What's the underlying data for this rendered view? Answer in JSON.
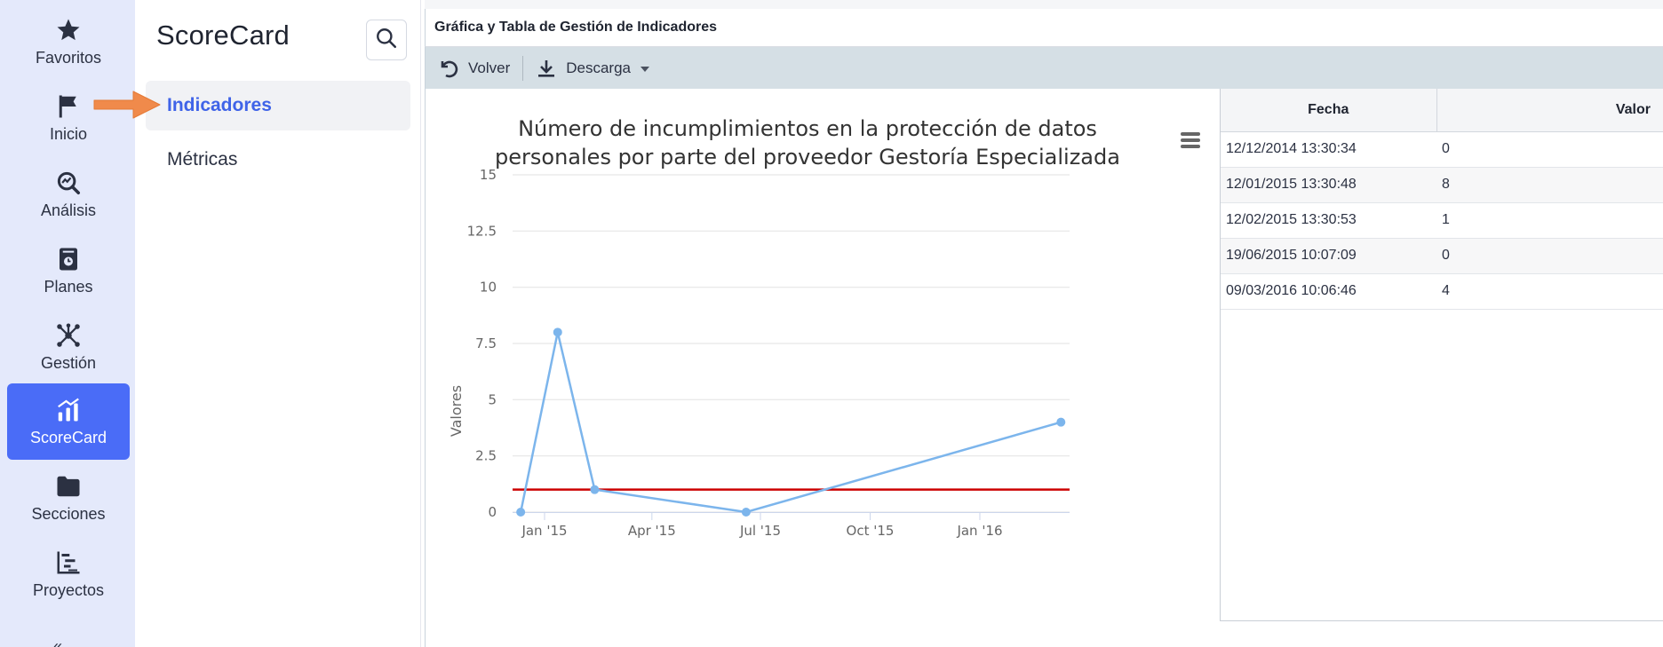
{
  "rail": {
    "items": [
      {
        "label": "Favoritos",
        "icon": "star-icon"
      },
      {
        "label": "Inicio",
        "icon": "flag-icon"
      },
      {
        "label": "Análisis",
        "icon": "analysis-magnifier-icon"
      },
      {
        "label": "Planes",
        "icon": "plans-book-icon"
      },
      {
        "label": "Gestión",
        "icon": "network-nodes-icon"
      },
      {
        "label": "ScoreCard",
        "icon": "bar-chart-icon"
      },
      {
        "label": "Secciones",
        "icon": "folder-icon"
      },
      {
        "label": "Proyectos",
        "icon": "gantt-icon"
      }
    ],
    "active": "ScoreCard",
    "more_label": "«"
  },
  "side": {
    "title": "ScoreCard",
    "items": [
      {
        "label": "Indicadores",
        "active": true
      },
      {
        "label": "Métricas",
        "active": false
      }
    ]
  },
  "panel": {
    "title": "Gráfica y Tabla de Gestión de Indicadores"
  },
  "toolbar": {
    "back_label": "Volver",
    "download_label": "Descarga"
  },
  "chart_data": {
    "type": "line",
    "title_line1": "Número de incumplimientos en la protección de datos",
    "title_line2": "personales por parte del proveedor Gestoría Especializada",
    "ylabel": "Valores",
    "ylim": [
      0,
      15
    ],
    "yticks": [
      0,
      2.5,
      5,
      7.5,
      10,
      12.5,
      15
    ],
    "ytick_labels": [
      "0",
      "2.5",
      "5",
      "7.5",
      "10",
      "12.5",
      "15"
    ],
    "xticks": [
      "Jan '15",
      "Apr '15",
      "Jul '15",
      "Oct '15",
      "Jan '16"
    ],
    "xtick_dates": [
      "2015-01-01",
      "2015-04-01",
      "2015-07-01",
      "2015-10-01",
      "2016-01-01"
    ],
    "series": [
      {
        "name": "Valores",
        "color": "#7cb5ec",
        "points": [
          {
            "date": "2014-12-12",
            "value": 0
          },
          {
            "date": "2015-01-12",
            "value": 8
          },
          {
            "date": "2015-02-12",
            "value": 1
          },
          {
            "date": "2015-06-19",
            "value": 0
          },
          {
            "date": "2016-03-09",
            "value": 4
          }
        ]
      }
    ],
    "threshold": {
      "value": 1,
      "color": "#cc0000"
    },
    "grid": true
  },
  "table": {
    "headers": {
      "fecha": "Fecha",
      "valor": "Valor"
    },
    "rows": [
      {
        "fecha": "12/12/2014 13:30:34",
        "valor": "0"
      },
      {
        "fecha": "12/01/2015 13:30:48",
        "valor": "8"
      },
      {
        "fecha": "12/02/2015 13:30:53",
        "valor": "1"
      },
      {
        "fecha": "19/06/2015 10:07:09",
        "valor": "0"
      },
      {
        "fecha": "09/03/2016 10:06:46",
        "valor": "4"
      }
    ]
  }
}
